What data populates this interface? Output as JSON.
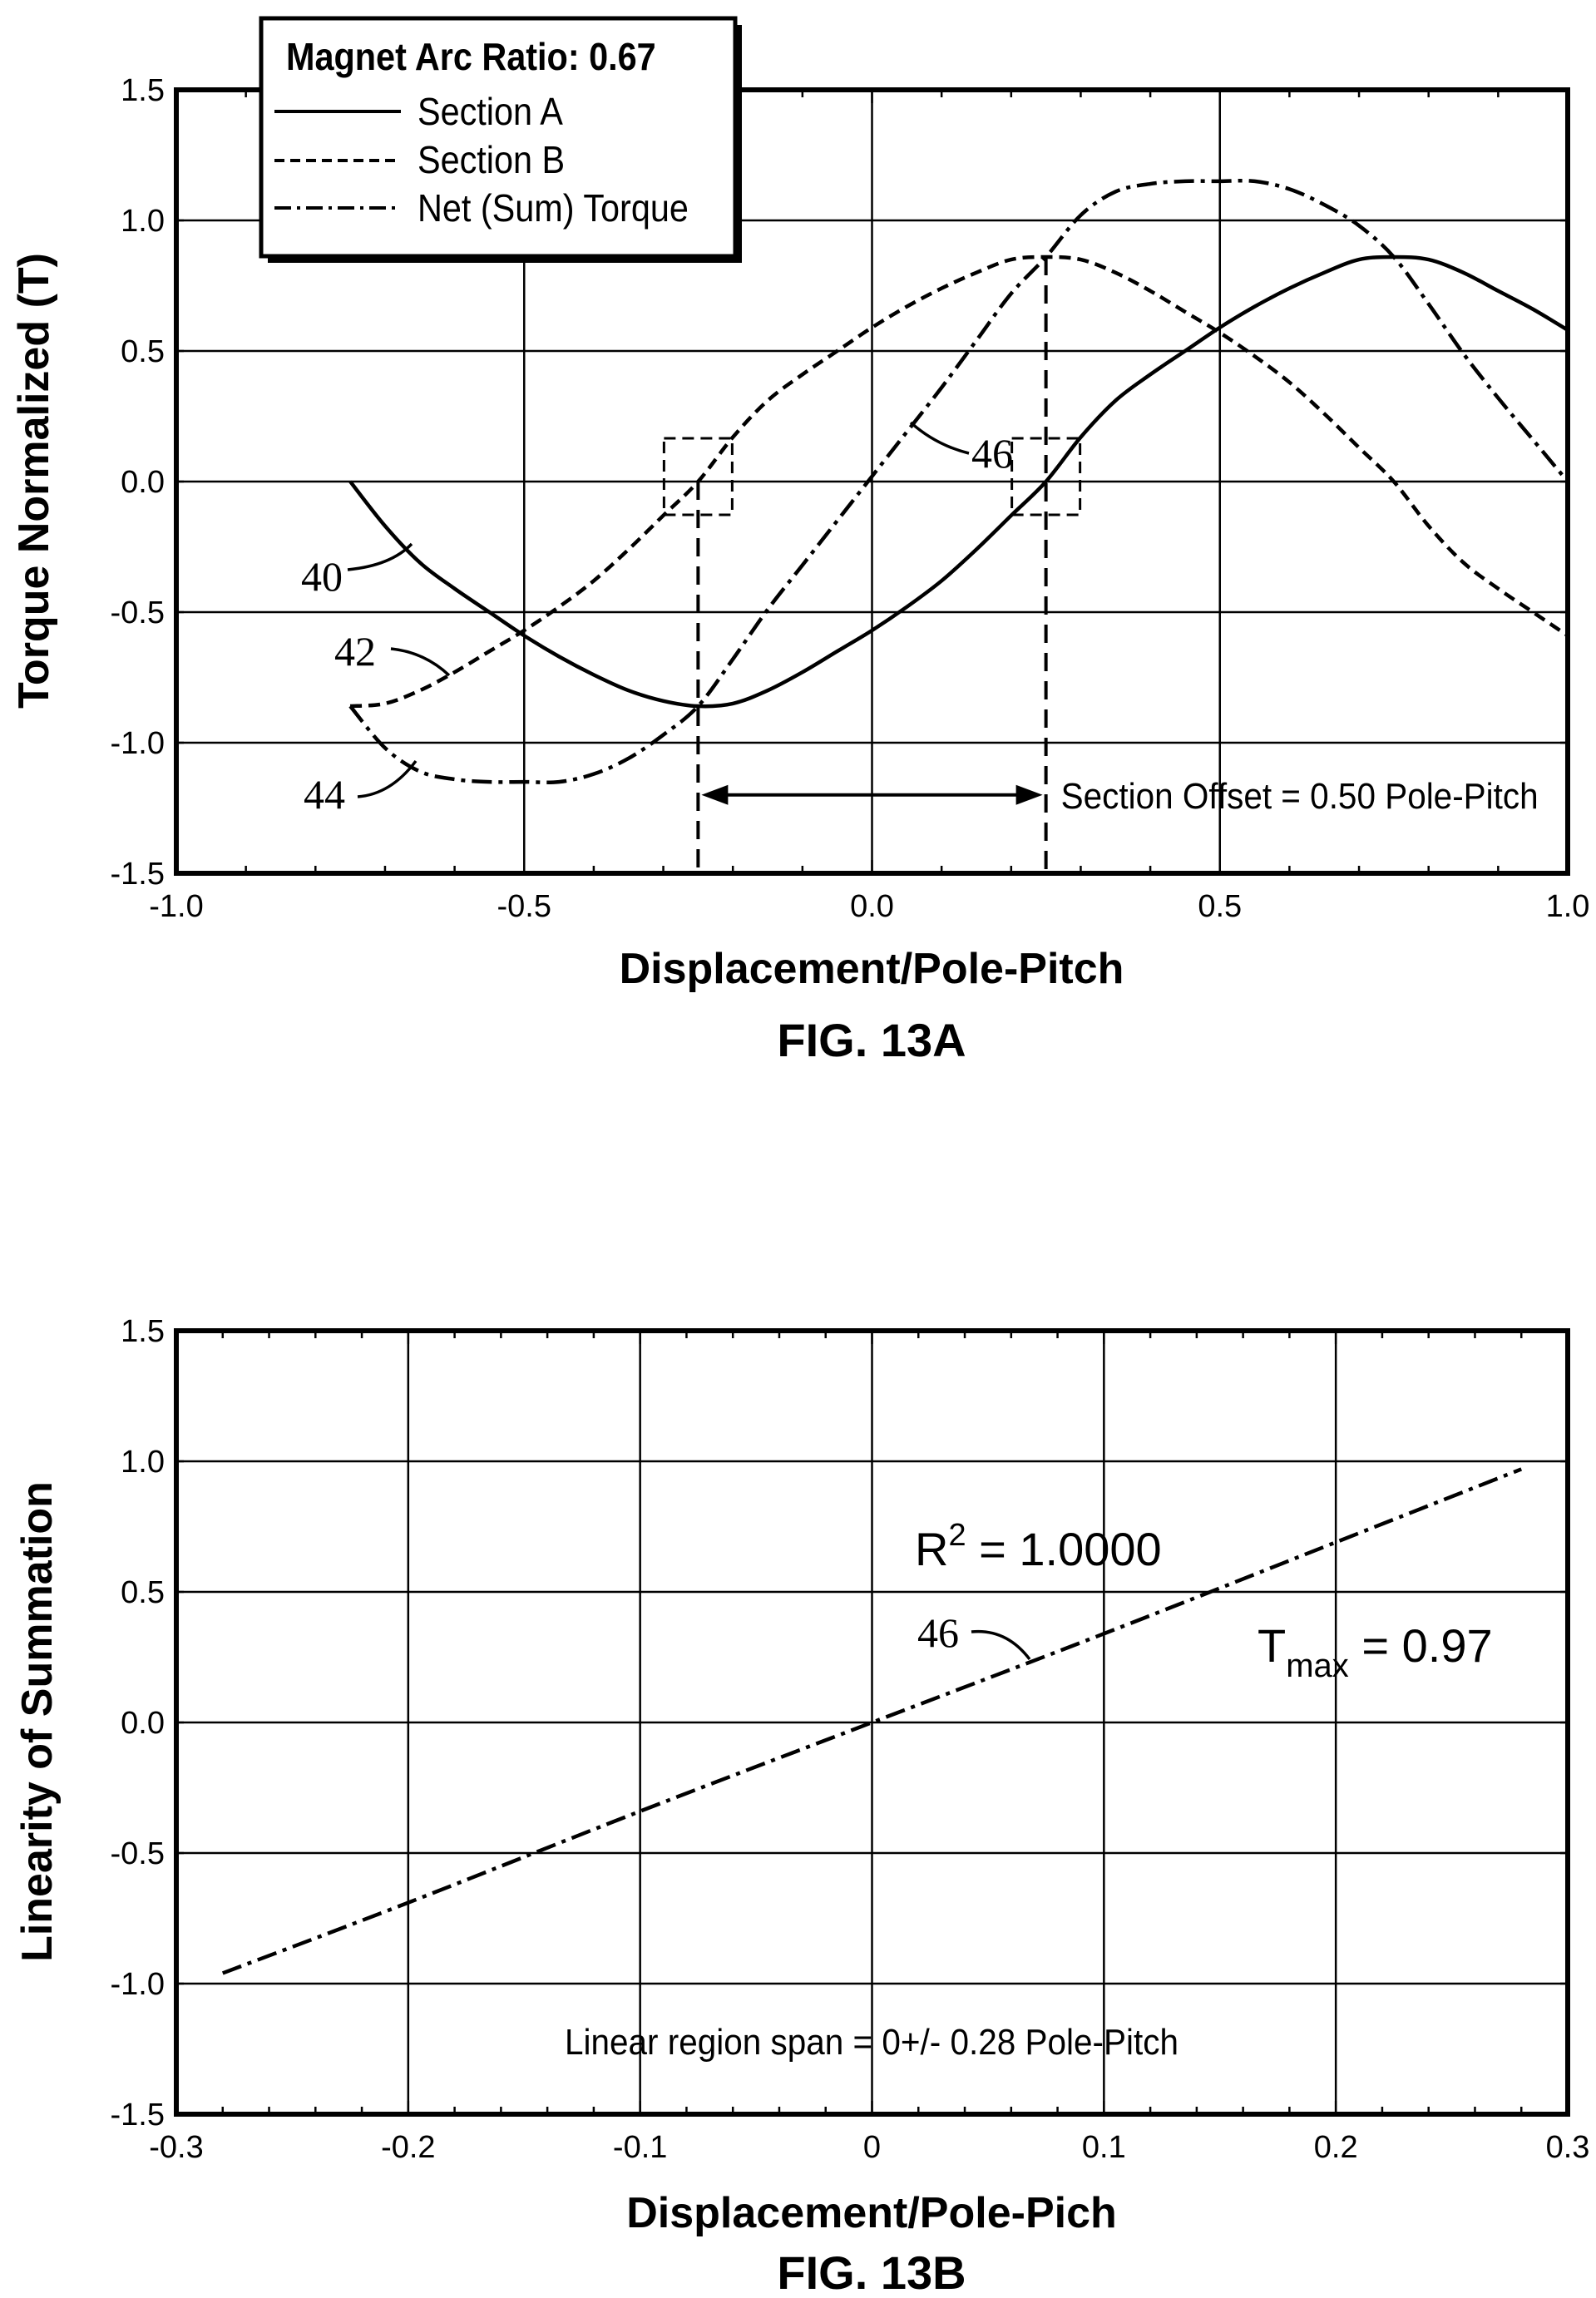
{
  "chart_data": [
    {
      "type": "line",
      "title": "FIG. 13A",
      "xlabel": "Displacement/Pole-Pitch",
      "ylabel": "Torque Normalized (T)",
      "xlim": [
        -1.0,
        1.0
      ],
      "ylim": [
        -1.5,
        1.5
      ],
      "x_ticks": [
        "-1.0",
        "-0.5",
        "0.0",
        "0.5",
        "1.0"
      ],
      "y_ticks": [
        "1.5",
        "1.0",
        "0.5",
        "0.0",
        "-0.5",
        "-1.0",
        "-1.5"
      ],
      "grid": true,
      "legend": {
        "title": "Magnet Arc Ratio: 0.67",
        "position": "top-left",
        "entries": [
          "Section A",
          "Section B",
          "Net (Sum) Torque"
        ]
      },
      "series": [
        {
          "name": "Section A",
          "style": "solid",
          "x": [
            -0.75,
            -0.7,
            -0.65,
            -0.6,
            -0.55,
            -0.5,
            -0.45,
            -0.4,
            -0.35,
            -0.3,
            -0.25,
            -0.2,
            -0.15,
            -0.1,
            -0.05,
            0.0,
            0.05,
            0.1,
            0.15,
            0.2,
            0.25,
            0.3,
            0.35,
            0.4,
            0.45,
            0.5,
            0.55,
            0.6,
            0.65,
            0.7,
            0.75,
            0.8,
            0.85,
            0.9,
            0.95,
            1.0
          ],
          "y": [
            0.0,
            -0.17,
            -0.31,
            -0.41,
            -0.5,
            -0.59,
            -0.67,
            -0.74,
            -0.8,
            -0.84,
            -0.86,
            -0.85,
            -0.8,
            -0.73,
            -0.65,
            -0.57,
            -0.48,
            -0.38,
            -0.26,
            -0.13,
            0.0,
            0.17,
            0.31,
            0.41,
            0.5,
            0.59,
            0.67,
            0.74,
            0.8,
            0.85,
            0.86,
            0.85,
            0.8,
            0.73,
            0.66,
            0.58
          ]
        },
        {
          "name": "Section B",
          "style": "dashed",
          "x": [
            -0.75,
            -0.7,
            -0.65,
            -0.6,
            -0.55,
            -0.5,
            -0.45,
            -0.4,
            -0.35,
            -0.3,
            -0.25,
            -0.2,
            -0.15,
            -0.1,
            -0.05,
            0.0,
            0.05,
            0.1,
            0.15,
            0.2,
            0.25,
            0.3,
            0.35,
            0.4,
            0.45,
            0.5,
            0.55,
            0.6,
            0.65,
            0.7,
            0.75,
            0.8,
            0.85,
            0.9,
            0.95,
            1.0
          ],
          "y": [
            -0.86,
            -0.85,
            -0.8,
            -0.73,
            -0.65,
            -0.57,
            -0.48,
            -0.38,
            -0.26,
            -0.13,
            0.0,
            0.17,
            0.31,
            0.41,
            0.5,
            0.59,
            0.67,
            0.74,
            0.8,
            0.85,
            0.86,
            0.85,
            0.8,
            0.73,
            0.65,
            0.57,
            0.48,
            0.38,
            0.26,
            0.13,
            0.0,
            -0.17,
            -0.31,
            -0.41,
            -0.5,
            -0.59
          ]
        },
        {
          "name": "Net (Sum) Torque",
          "style": "dashdot",
          "x": [
            -0.75,
            -0.7,
            -0.65,
            -0.6,
            -0.55,
            -0.5,
            -0.45,
            -0.4,
            -0.35,
            -0.3,
            -0.25,
            -0.2,
            -0.15,
            -0.1,
            -0.05,
            0.0,
            0.05,
            0.1,
            0.15,
            0.2,
            0.25,
            0.3,
            0.35,
            0.4,
            0.45,
            0.5,
            0.55,
            0.6,
            0.65,
            0.7,
            0.75,
            0.8,
            0.85,
            0.9,
            0.95,
            1.0
          ],
          "y": [
            -0.86,
            -1.02,
            -1.11,
            -1.14,
            -1.15,
            -1.15,
            -1.15,
            -1.12,
            -1.06,
            -0.97,
            -0.86,
            -0.68,
            -0.49,
            -0.32,
            -0.15,
            0.02,
            0.19,
            0.36,
            0.54,
            0.72,
            0.86,
            1.02,
            1.11,
            1.14,
            1.15,
            1.15,
            1.15,
            1.12,
            1.06,
            0.98,
            0.86,
            0.68,
            0.49,
            0.32,
            0.16,
            0.0
          ]
        }
      ],
      "annotations": {
        "section_offset": "Section Offset = 0.50 Pole-Pitch",
        "offset_from_x": -0.25,
        "offset_to_x": 0.25,
        "offset_y": -1.2,
        "marker_boxes": [
          {
            "x": -0.25,
            "y": 0.0
          },
          {
            "x": 0.25,
            "y": 0.0
          }
        ],
        "ref_labels": {
          "section_a": "40",
          "section_b": "42",
          "net_torque": "44",
          "net_torque_mid": "46"
        }
      }
    },
    {
      "type": "line",
      "title": "FIG. 13B",
      "xlabel": "Displacement/Pole-Pich",
      "ylabel": "Linearity of Summation",
      "xlim": [
        -0.3,
        0.3
      ],
      "ylim": [
        -1.5,
        1.5
      ],
      "x_ticks": [
        "-0.3",
        "-0.2",
        "-0.1",
        "0",
        "0.1",
        "0.2",
        "0.3"
      ],
      "y_ticks": [
        "1.5",
        "1.0",
        "0.5",
        "0.0",
        "-0.5",
        "-1.0",
        "-1.5"
      ],
      "grid": true,
      "series": [
        {
          "style": "dashdot",
          "x": [
            -0.28,
            -0.2,
            -0.1,
            0.0,
            0.1,
            0.2,
            0.28
          ],
          "y": [
            -0.96,
            -0.69,
            -0.34,
            0.0,
            0.34,
            0.69,
            0.97
          ]
        }
      ],
      "annotations": {
        "r_squared_prefix": "R",
        "r_squared_exp": "2",
        "r_squared_value": " = 1.0000",
        "tmax_prefix": "T",
        "tmax_sub": "max",
        "tmax_value": " = 0.97",
        "linear_span": "Linear region span = 0+/- 0.28 Pole-Pitch",
        "ref_label": "46"
      }
    }
  ]
}
